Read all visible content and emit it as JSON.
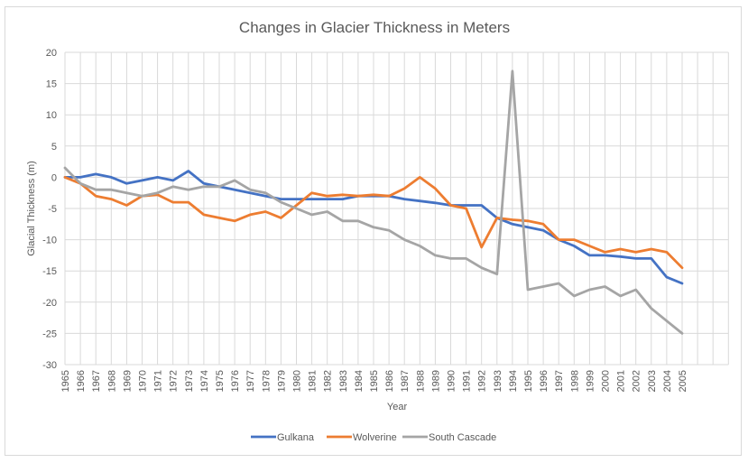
{
  "chart_data": {
    "type": "line",
    "title": "Changes in Glacier Thickness in Meters",
    "xlabel": "Year",
    "ylabel": "Glacial Thickness (m)",
    "ylim": [
      -30,
      20
    ],
    "yticks": [
      20,
      15,
      10,
      5,
      0,
      -5,
      -10,
      -15,
      -20,
      -25,
      -30
    ],
    "grid": true,
    "legend_position": "bottom",
    "extra_empty_categories": 3,
    "categories": [
      "1965",
      "1966",
      "1967",
      "1968",
      "1969",
      "1970",
      "1971",
      "1972",
      "1973",
      "1974",
      "1975",
      "1976",
      "1977",
      "1978",
      "1979",
      "1980",
      "1981",
      "1982",
      "1983",
      "1984",
      "1985",
      "1986",
      "1987",
      "1988",
      "1989",
      "1990",
      "1991",
      "1992",
      "1993",
      "1994",
      "1995",
      "1996",
      "1997",
      "1998",
      "1999",
      "2000",
      "2001",
      "2002",
      "2003",
      "2004",
      "2005"
    ],
    "series": [
      {
        "name": "Gulkana",
        "color": "#4472c4",
        "values": [
          0,
          0,
          0.5,
          0,
          -1,
          -0.5,
          0,
          -0.5,
          1,
          -1,
          -1.5,
          -2,
          -2.5,
          -3,
          -3.5,
          -3.5,
          -3.5,
          -3.5,
          -3.5,
          -3,
          -3,
          -3,
          -3.5,
          -3.8,
          -4.1,
          -4.5,
          -4.5,
          -4.5,
          -6.5,
          -7.5,
          -8,
          -8.5,
          -10,
          -11,
          -12.5,
          -12.5,
          -12.7,
          -13,
          -13,
          -16,
          -17
        ]
      },
      {
        "name": "Wolverine",
        "color": "#ed7d31",
        "values": [
          0,
          -1,
          -3,
          -3.5,
          -4.5,
          -3,
          -2.8,
          -4,
          -4,
          -6,
          -6.5,
          -7,
          -6,
          -5.5,
          -6.5,
          -4.5,
          -2.5,
          -3,
          -2.8,
          -3,
          -2.8,
          -3,
          -1.8,
          0,
          -1.8,
          -4.5,
          -5,
          -11.2,
          -6.5,
          -6.8,
          -7,
          -7.5,
          -10,
          -10,
          -11,
          -12,
          -11.5,
          -12,
          -11.5,
          -12,
          -14.5
        ]
      },
      {
        "name": "South Cascade",
        "color": "#a5a5a5",
        "values": [
          1.5,
          -1,
          -2,
          -2,
          -2.5,
          -3,
          -2.5,
          -1.5,
          -2,
          -1.5,
          -1.5,
          -0.5,
          -2,
          -2.5,
          -4,
          -5,
          -6,
          -5.5,
          -7,
          -7,
          -8,
          -8.5,
          -10,
          -11,
          -12.5,
          -13,
          -13,
          -14.5,
          -15.5,
          17,
          -18,
          -17.5,
          -17,
          -19,
          -18,
          -17.5,
          -19,
          -18,
          -21,
          -23,
          -25
        ]
      }
    ]
  }
}
